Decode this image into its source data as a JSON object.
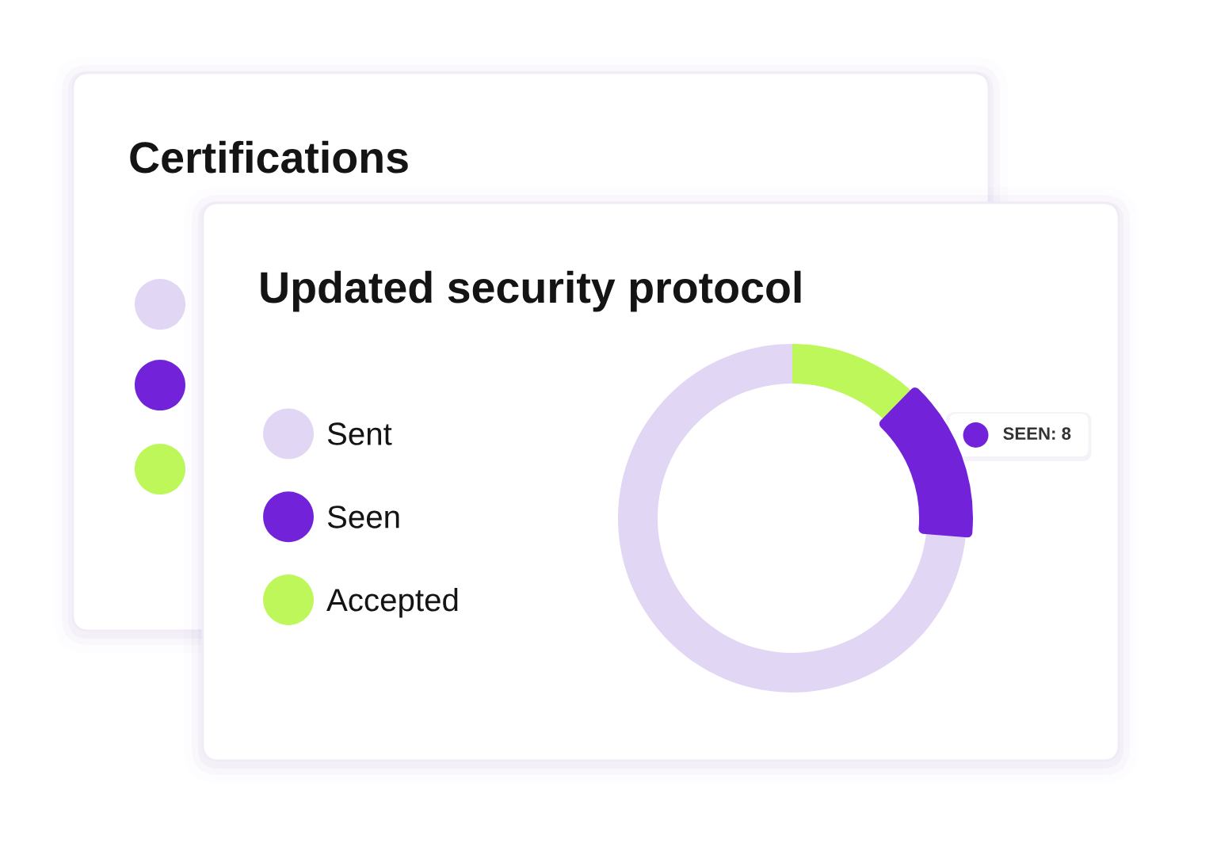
{
  "chart_data": [
    {
      "type": "other",
      "title": "Certifications"
    },
    {
      "type": "donut",
      "title": "Updated security protocol",
      "categories": [
        "Sent",
        "Seen",
        "Accepted"
      ],
      "values": [
        42,
        8,
        7
      ],
      "colors": [
        "#e2d6f5",
        "#7223da",
        "#bef75a"
      ],
      "value_labels": [
        null,
        "SEEN: 8",
        null
      ],
      "legend": "left"
    }
  ]
}
